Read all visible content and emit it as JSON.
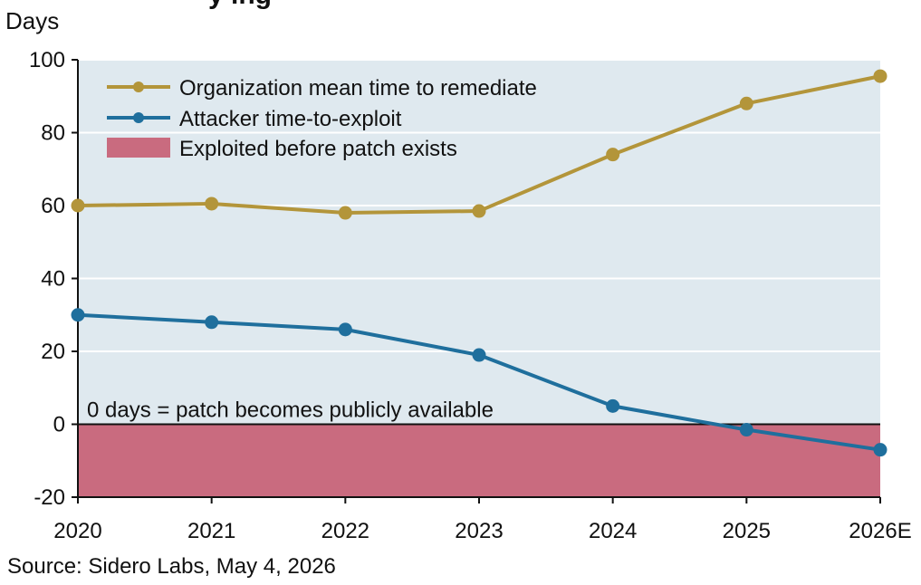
{
  "header": {
    "clipped_title": "y  ing"
  },
  "footer": {
    "source": "Source: Sidero Labs, May 4, 2026"
  },
  "chart_data": {
    "type": "line",
    "title": "",
    "xlabel": "",
    "ylabel": "Days",
    "ylim": [
      -20,
      100
    ],
    "yticks": [
      -20,
      0,
      20,
      40,
      60,
      80,
      100
    ],
    "categories": [
      "2020",
      "2021",
      "2022",
      "2023",
      "2024",
      "2025",
      "2026E"
    ],
    "series": [
      {
        "name": "Organization mean time to remediate",
        "color": "#b3953a",
        "values": [
          60,
          60.5,
          58,
          58.5,
          74,
          88,
          95.5
        ]
      },
      {
        "name": "Attacker time-to-exploit",
        "color": "#1f6f9d",
        "values": [
          30,
          28,
          26,
          19,
          5,
          -1.5,
          -7
        ]
      }
    ],
    "band": {
      "name": "Exploited before patch exists",
      "color": "#c96b7f",
      "from": -20,
      "to": 0
    },
    "annotation": "0 days = patch becomes publicly available",
    "grid": true,
    "legend_position": "top-left",
    "plot_background": "#dfe9ef"
  }
}
